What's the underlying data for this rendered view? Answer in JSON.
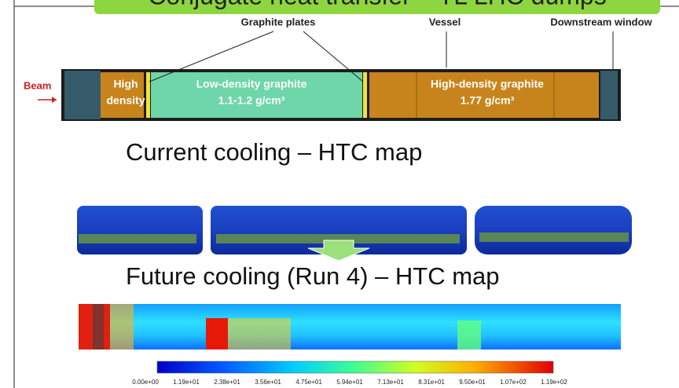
{
  "slide": {
    "title": "Conjugate heat transfer – TL LHC dumps",
    "diagram": {
      "labels": {
        "graphite_plates": "Graphite plates",
        "vessel": "Vessel",
        "downstream_window": "Downstream window",
        "beam": "Beam"
      },
      "sections": [
        {
          "name": [
            "High",
            "density"
          ]
        },
        {
          "name": [
            "Low-density graphite",
            "1.1-1.2 g/cm³"
          ]
        },
        {
          "name": [
            "High-density graphite",
            "1.77 g/cm³"
          ]
        }
      ]
    },
    "current_heading": "Current cooling – HTC map",
    "future_heading": "Future cooling (Run 4) – HTC map",
    "colorbar_labels": [
      "0.00e+00",
      "1.19e+01",
      "2.38e+01",
      "3.56e+01",
      "4.75e+01",
      "5.94e+01",
      "7.13e+01",
      "8.31e+01",
      "9.50e+01",
      "1.07e+02",
      "1.19e+02"
    ]
  }
}
